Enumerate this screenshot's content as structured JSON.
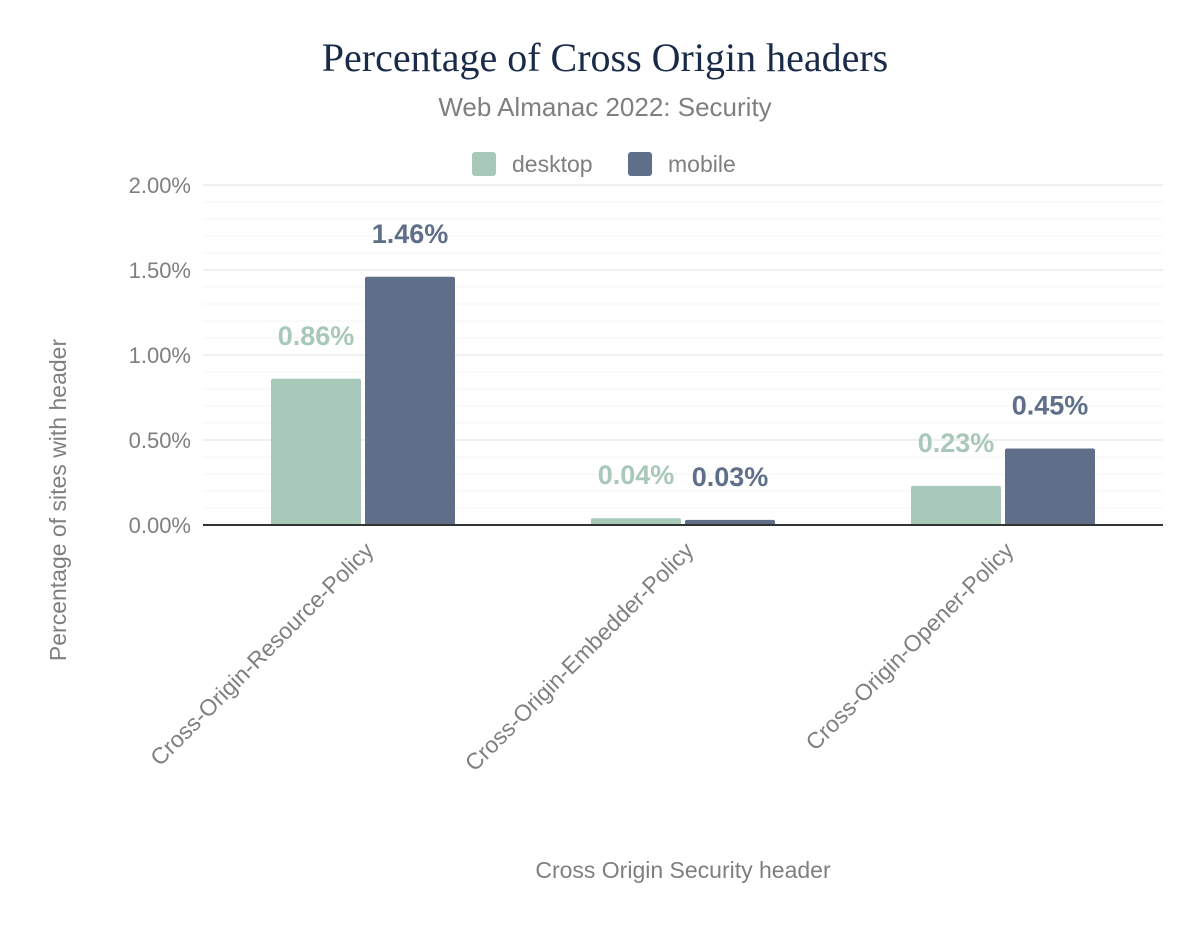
{
  "chart_data": {
    "type": "bar",
    "title": "Percentage of Cross Origin headers",
    "subtitle": "Web Almanac 2022: Security",
    "xlabel": "Cross Origin Security header",
    "ylabel": "Percentage of sites with header",
    "categories": [
      "Cross-Origin-Resource-Policy",
      "Cross-Origin-Embedder-Policy",
      "Cross-Origin-Opener-Policy"
    ],
    "series": [
      {
        "name": "desktop",
        "color": "#a8c8b9",
        "values": [
          0.86,
          0.04,
          0.23
        ],
        "labels": [
          "0.86%",
          "0.04%",
          "0.23%"
        ]
      },
      {
        "name": "mobile",
        "color": "#5f6f8a",
        "values": [
          1.46,
          0.03,
          0.45
        ],
        "labels": [
          "1.46%",
          "0.03%",
          "0.45%"
        ]
      }
    ],
    "ylim": [
      0,
      2
    ],
    "yticks": [
      0,
      0.5,
      1,
      1.5,
      2
    ],
    "ytick_labels": [
      "0.00%",
      "0.50%",
      "1.00%",
      "1.50%",
      "2.00%"
    ],
    "grid": true,
    "legend_position": "top-center"
  }
}
